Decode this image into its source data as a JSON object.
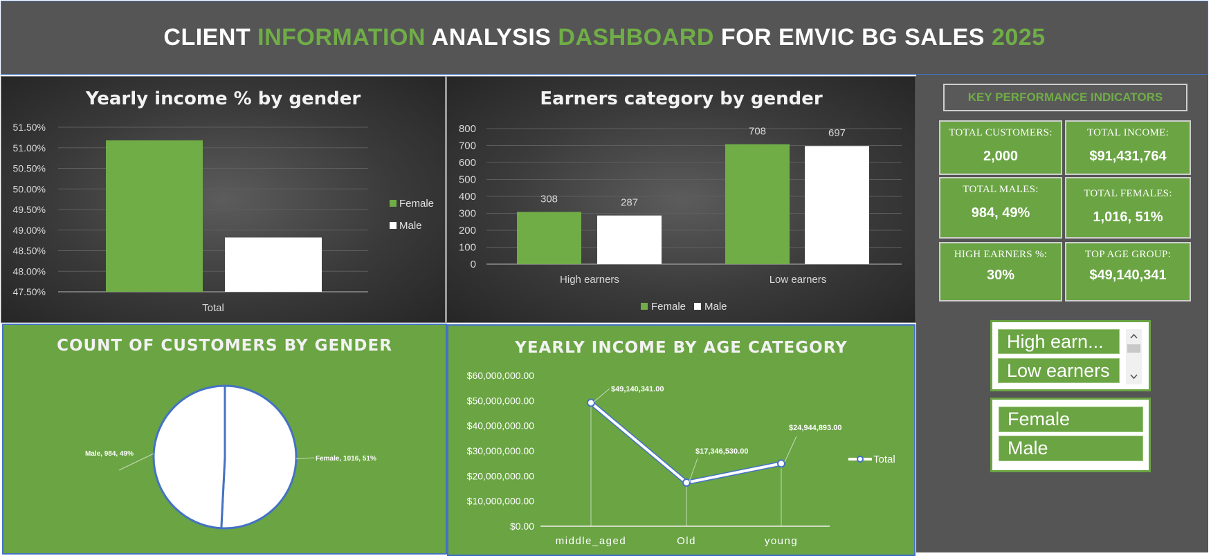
{
  "header": {
    "title_parts": [
      {
        "text": "CLIENT ",
        "green": false
      },
      {
        "text": "INFORMATION",
        "green": true
      },
      {
        "text": " ANALYSIS ",
        "green": false
      },
      {
        "text": "DASHBOARD",
        "green": true
      },
      {
        "text": " FOR EMVIC BG SALES ",
        "green": false
      },
      {
        "text": "2025",
        "green": true
      }
    ]
  },
  "colors": {
    "accent_green": "#70ad47",
    "panel_green": "#6aa443",
    "dark_gray": "#555555",
    "male_white": "#ffffff",
    "border_blue": "#4472c4"
  },
  "chart_data": [
    {
      "id": "income_pct",
      "type": "bar",
      "title": "Yearly income % by gender",
      "categories": [
        "Total"
      ],
      "series": [
        {
          "name": "Female",
          "values": [
            0.5118
          ],
          "color": "#70ad47"
        },
        {
          "name": "Male",
          "values": [
            0.4882
          ],
          "color": "#ffffff"
        }
      ],
      "ylim": [
        0.475,
        0.515
      ],
      "y_ticks": [
        "51.50%",
        "51.00%",
        "50.50%",
        "50.00%",
        "49.50%",
        "49.00%",
        "48.50%",
        "48.00%",
        "47.50%"
      ],
      "legend": "right",
      "grid": true
    },
    {
      "id": "earners",
      "type": "bar",
      "title": "Earners category by gender",
      "categories": [
        "High earners",
        "Low earners"
      ],
      "series": [
        {
          "name": "Female",
          "values": [
            308,
            708
          ],
          "color": "#70ad47"
        },
        {
          "name": "Male",
          "values": [
            287,
            697
          ],
          "color": "#ffffff"
        }
      ],
      "ylim": [
        0,
        800
      ],
      "y_ticks": [
        "800",
        "700",
        "600",
        "500",
        "400",
        "300",
        "200",
        "100",
        "0"
      ],
      "data_labels": [
        "308",
        "287",
        "708",
        "697"
      ],
      "legend": "bottom",
      "grid": true
    },
    {
      "id": "gender_count",
      "type": "pie",
      "title": "COUNT OF CUSTOMERS BY GENDER",
      "slices": [
        {
          "name": "Female",
          "value": 1016,
          "label": "Female, 1016, 51%"
        },
        {
          "name": "Male",
          "value": 984,
          "label": "Male, 984, 49%"
        }
      ]
    },
    {
      "id": "income_age",
      "type": "line",
      "title": "YEARLY INCOME BY AGE CATEGORY",
      "categories": [
        "middle_aged",
        "Old",
        "young"
      ],
      "series": [
        {
          "name": "Total",
          "values": [
            49140341,
            17346530,
            24944893
          ]
        }
      ],
      "data_labels": [
        "$49,140,341.00",
        "$17,346,530.00",
        "$24,944,893.00"
      ],
      "ylim": [
        0,
        60000000
      ],
      "y_ticks": [
        "$60,000,000.00",
        "$50,000,000.00",
        "$40,000,000.00",
        "$30,000,000.00",
        "$20,000,000.00",
        "$10,000,000.00",
        "$0.00"
      ],
      "legend": "right",
      "grid": false
    }
  ],
  "kpi": {
    "header": "KEY PERFORMANCE INDICATORS",
    "cards": [
      {
        "label": "TOTAL CUSTOMERS:",
        "value": "2,000"
      },
      {
        "label": "TOTAL INCOME:",
        "value": "$91,431,764"
      },
      {
        "label": "TOTAL MALES:",
        "value": "984, 49%"
      },
      {
        "label": "TOTAL FEMALES:",
        "value": "1,016, 51%"
      },
      {
        "label": "HIGH EARNERS %:",
        "value": "30%"
      },
      {
        "label": "TOP AGE GROUP:",
        "value": "$49,140,341"
      }
    ]
  },
  "slicers": {
    "earner": {
      "items": [
        "High earn...",
        "Low earners"
      ]
    },
    "gender": {
      "items": [
        "Female",
        "Male"
      ]
    }
  }
}
